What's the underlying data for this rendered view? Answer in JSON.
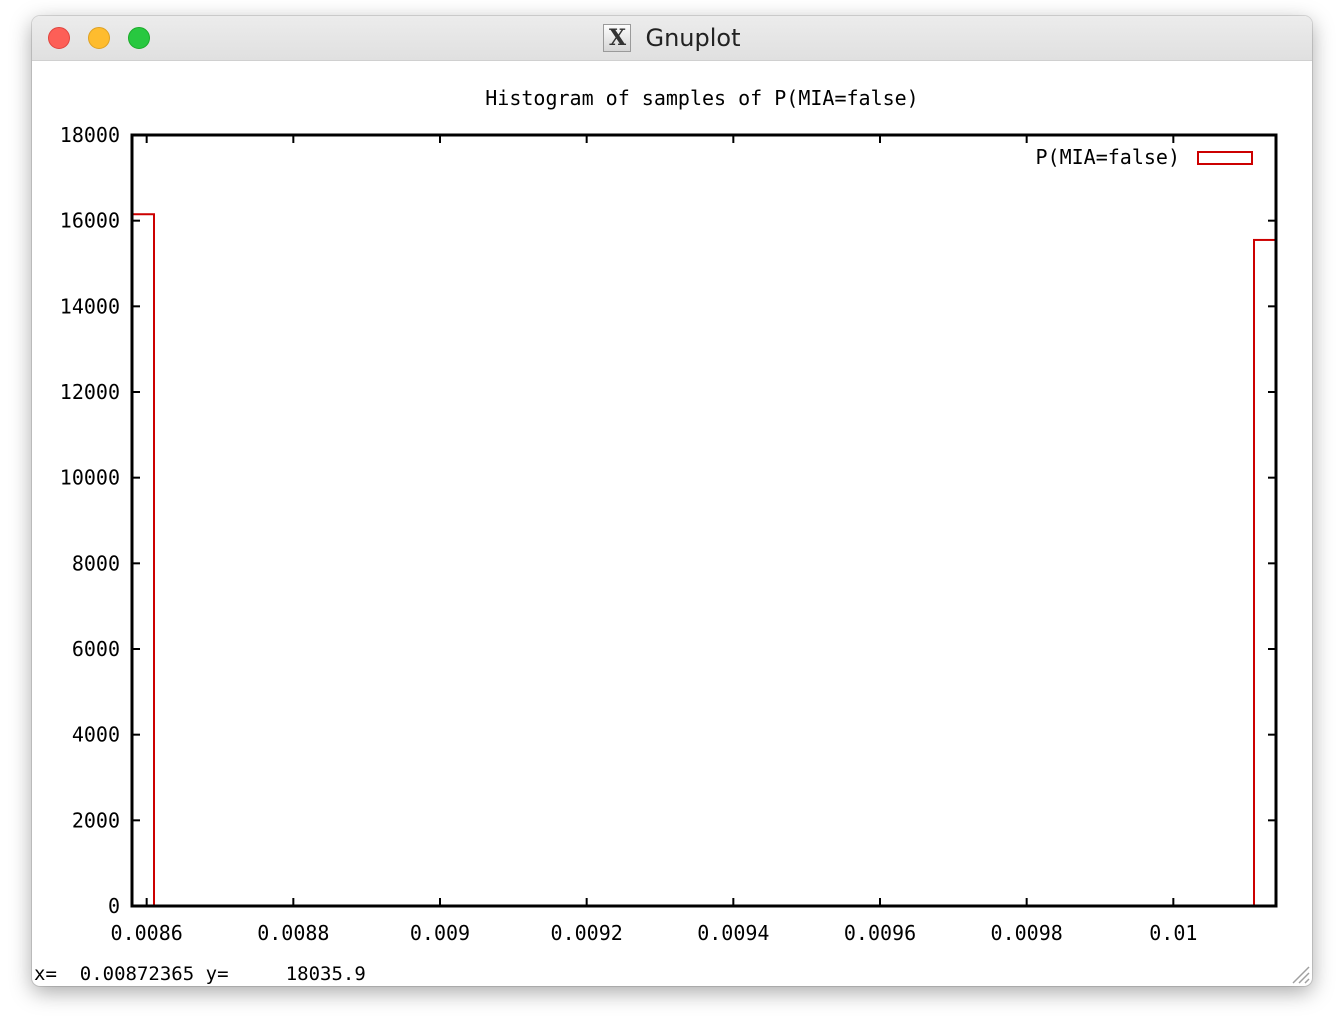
{
  "window": {
    "title": "Gnuplot",
    "icon": "x11-icon",
    "buttons": [
      "close",
      "minimize",
      "maximize"
    ]
  },
  "chart_data": {
    "type": "bar",
    "title": "Histogram of samples of P(MIA=false)",
    "xlabel": "",
    "ylabel": "",
    "xlim": [
      0.00858,
      0.01014
    ],
    "ylim": [
      0,
      18000
    ],
    "xticks": [
      "0.0086",
      "0.0088",
      "0.009",
      "0.0092",
      "0.0094",
      "0.0096",
      "0.0098",
      "0.01"
    ],
    "xtick_values": [
      0.0086,
      0.0088,
      0.009,
      0.0092,
      0.0094,
      0.0096,
      0.0098,
      0.01
    ],
    "yticks": [
      "0",
      "2000",
      "4000",
      "6000",
      "8000",
      "10000",
      "12000",
      "14000",
      "16000",
      "18000"
    ],
    "ytick_values": [
      0,
      2000,
      4000,
      6000,
      8000,
      10000,
      12000,
      14000,
      16000,
      18000
    ],
    "series": [
      {
        "name": "P(MIA=false)",
        "color": "#cc0000",
        "bins": [
          {
            "x0": 0.00858,
            "x1": 0.00861,
            "value": 16150
          },
          {
            "x0": 0.01011,
            "x1": 0.01014,
            "value": 15550
          }
        ]
      }
    ],
    "legend": "top-right",
    "grid": false
  },
  "status": {
    "x_label": "x=",
    "x_value": "0.00872365",
    "y_label": "y=",
    "y_value": "18035.9"
  }
}
